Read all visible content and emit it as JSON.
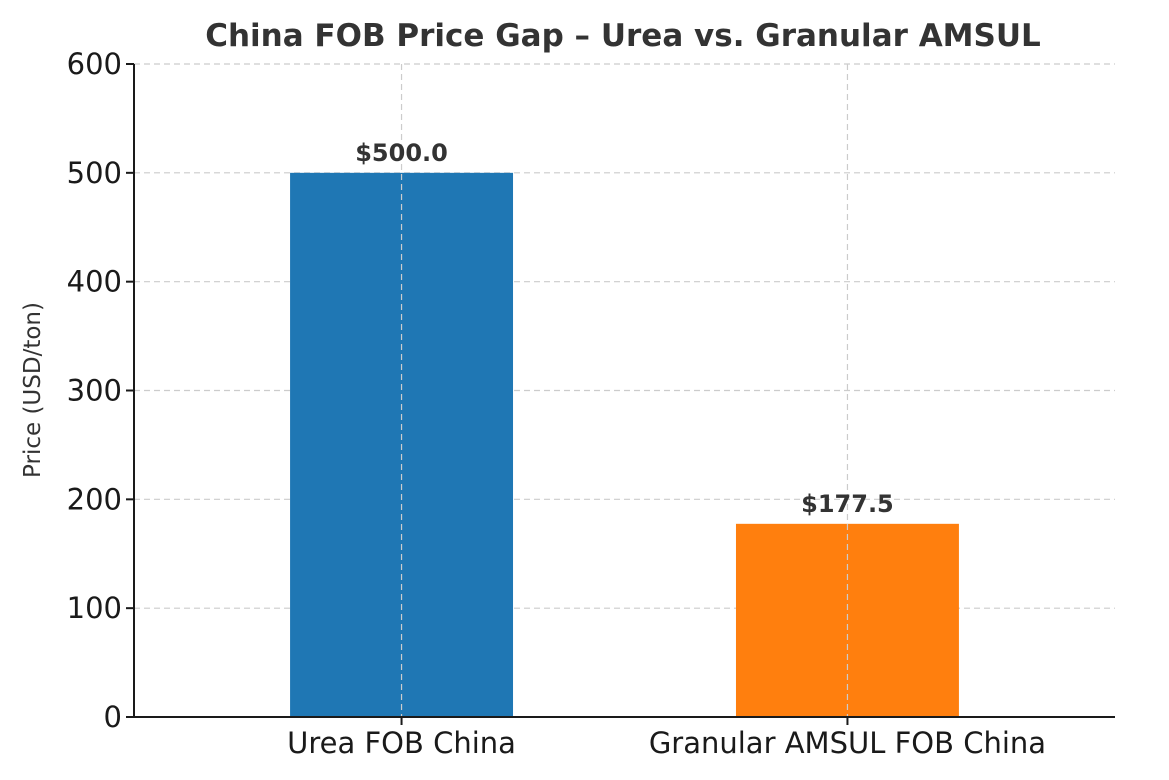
{
  "chart_data": {
    "type": "bar",
    "title": "China FOB Price Gap – Urea vs. Granular AMSUL",
    "xlabel": "",
    "ylabel": "Price (USD/ton)",
    "categories": [
      "Urea FOB China",
      "Granular AMSUL FOB China"
    ],
    "values": [
      500.0,
      177.5
    ],
    "data_labels": [
      "$500.0",
      "$177.5"
    ],
    "colors": [
      "#1f77b4",
      "#ff7f0e"
    ],
    "ylim": [
      0,
      600
    ],
    "yticks": [
      0,
      100,
      200,
      300,
      400,
      500,
      600
    ],
    "ytick_labels": [
      "0",
      "100",
      "200",
      "300",
      "400",
      "500",
      "600"
    ],
    "grid": true,
    "legend": false
  }
}
